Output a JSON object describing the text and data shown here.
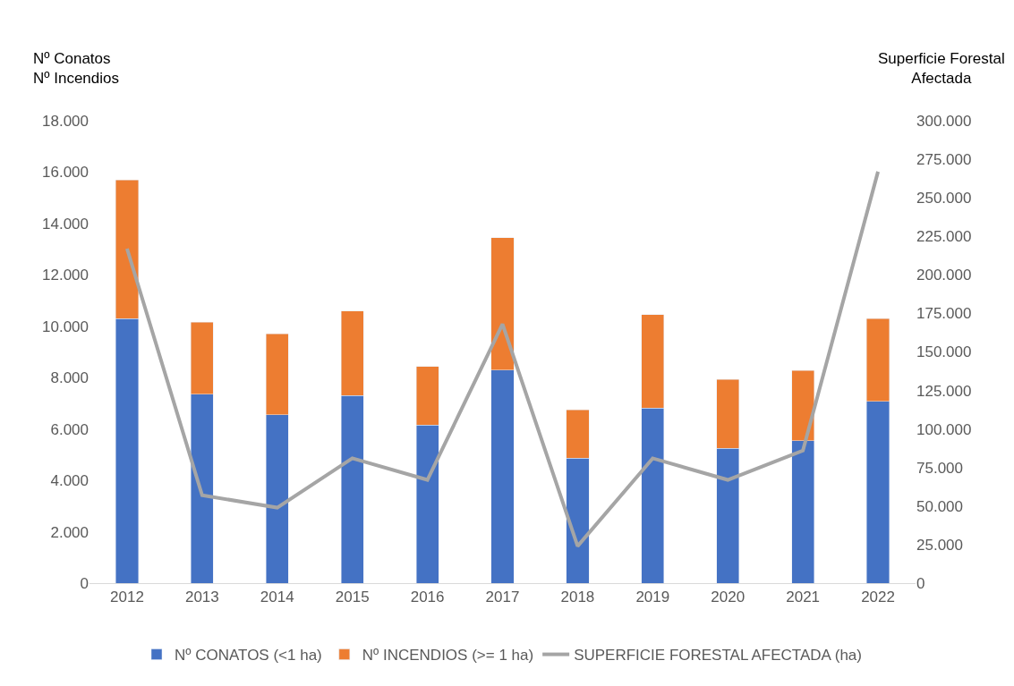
{
  "chart_data": {
    "type": "bar",
    "stacked": true,
    "categories": [
      "2012",
      "2013",
      "2014",
      "2015",
      "2016",
      "2017",
      "2018",
      "2019",
      "2020",
      "2021",
      "2022"
    ],
    "ylabel": "Nº Conatos\nNº Incendios",
    "y2label": "Superficie Forestal\nAfectada",
    "series": [
      {
        "name": "Nº CONATOS (<1 ha)",
        "color": "#4472c4",
        "values": [
          10300,
          7350,
          6550,
          7300,
          6150,
          8300,
          4870,
          6820,
          5250,
          5550,
          7080
        ]
      },
      {
        "name": "Nº INCENDIOS (>= 1 ha)",
        "color": "#ed7d31",
        "values": [
          5400,
          2800,
          3150,
          3300,
          2280,
          5150,
          1880,
          3630,
          2680,
          2720,
          3220
        ]
      },
      {
        "name": "SUPERFICIE FORESTAL AFECTADA (ha)",
        "type": "line",
        "axis": "y2",
        "color": "#a5a5a5",
        "marker": "none",
        "values": [
          217000,
          57000,
          49000,
          81000,
          67000,
          168000,
          24000,
          81000,
          67000,
          86000,
          267000
        ]
      }
    ],
    "ylim": [
      0,
      18000
    ],
    "yticks": [
      {
        "value": 0,
        "label": "0"
      },
      {
        "value": 2000,
        "label": "2.000"
      },
      {
        "value": 4000,
        "label": "4.000"
      },
      {
        "value": 6000,
        "label": "6.000"
      },
      {
        "value": 8000,
        "label": "8.000"
      },
      {
        "value": 10000,
        "label": "10.000"
      },
      {
        "value": 12000,
        "label": "12.000"
      },
      {
        "value": 14000,
        "label": "14.000"
      },
      {
        "value": 16000,
        "label": "16.000"
      },
      {
        "value": 18000,
        "label": "18.000"
      }
    ],
    "y2lim": [
      0,
      300000
    ],
    "y2ticks": [
      {
        "value": 0,
        "label": "0"
      },
      {
        "value": 25000,
        "label": "25.000"
      },
      {
        "value": 50000,
        "label": "50.000"
      },
      {
        "value": 75000,
        "label": "75.000"
      },
      {
        "value": 100000,
        "label": "100.000"
      },
      {
        "value": 125000,
        "label": "125.000"
      },
      {
        "value": 150000,
        "label": "150.000"
      },
      {
        "value": 175000,
        "label": "175.000"
      },
      {
        "value": 200000,
        "label": "200.000"
      },
      {
        "value": 225000,
        "label": "225.000"
      },
      {
        "value": 250000,
        "label": "250.000"
      },
      {
        "value": 275000,
        "label": "275.000"
      },
      {
        "value": 300000,
        "label": "300.000"
      }
    ],
    "legend": "bottom"
  }
}
